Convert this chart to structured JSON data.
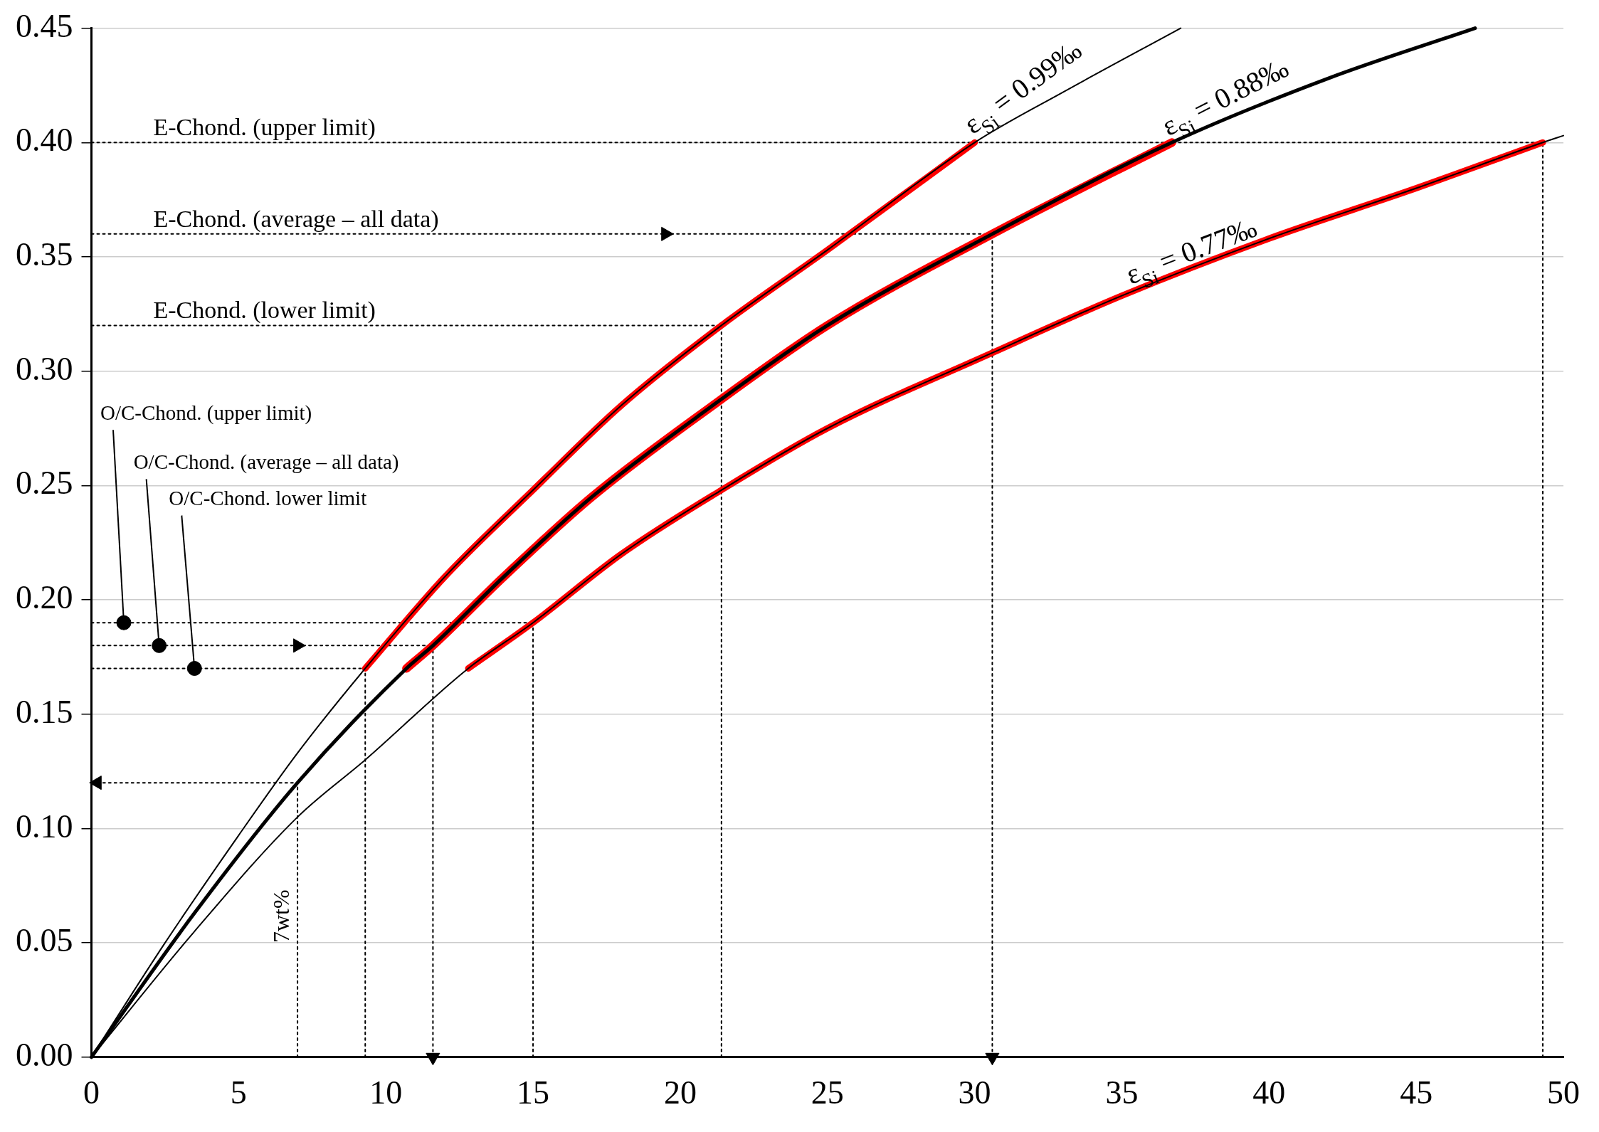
{
  "chart_data": {
    "type": "line",
    "xlim": [
      0,
      50
    ],
    "ylim": [
      0,
      0.45
    ],
    "xticks": [
      0,
      5,
      10,
      15,
      20,
      25,
      30,
      35,
      40,
      45,
      50
    ],
    "yticks": [
      {
        "value": 0,
        "label": "0.00"
      },
      {
        "value": 0.05,
        "label": "0.05"
      },
      {
        "value": 0.1,
        "label": "0.10"
      },
      {
        "value": 0.15,
        "label": "0.15"
      },
      {
        "value": 0.2,
        "label": "0.20"
      },
      {
        "value": 0.25,
        "label": "0.25"
      },
      {
        "value": 0.3,
        "label": "0.30"
      },
      {
        "value": 0.35,
        "label": "0.35"
      },
      {
        "value": 0.4,
        "label": "0.40"
      },
      {
        "value": 0.45,
        "label": "0.45"
      }
    ],
    "grid": "y",
    "legend": false,
    "marker": "none",
    "line_style": "solid",
    "series": [
      {
        "name": "ε$_{Si}$ = 0.99‰",
        "color": "#000000",
        "x": [
          0,
          2.5,
          5,
          7,
          9.3,
          12,
          15,
          18,
          21.4,
          25,
          30,
          33,
          37
        ],
        "values": [
          0,
          0.05,
          0.097,
          0.133,
          0.17,
          0.21,
          0.248,
          0.285,
          0.32,
          0.353,
          0.4,
          0.422,
          0.45
        ]
      },
      {
        "name": "ε$_{Si}$ = 0.88‰",
        "color": "#000000",
        "x": [
          0,
          3.5,
          7,
          10.7,
          11.6,
          14,
          17,
          21,
          25,
          30.6,
          36.7,
          42,
          47
        ],
        "values": [
          0,
          0.063,
          0.12,
          0.17,
          0.18,
          0.21,
          0.245,
          0.284,
          0.32,
          0.36,
          0.4,
          0.428,
          0.45
        ]
      },
      {
        "name": "ε$_{Si}$ = 0.77‰",
        "color": "#000000",
        "x": [
          0,
          3.5,
          7,
          9.3,
          12.8,
          15,
          18,
          21.4,
          25,
          30.6,
          35,
          40,
          45,
          49.3,
          50
        ],
        "values": [
          0,
          0.055,
          0.105,
          0.13,
          0.17,
          0.19,
          0.22,
          0.248,
          0.275,
          0.308,
          0.333,
          0.358,
          0.38,
          0.4,
          0.403
        ]
      },
      {
        "color": "#ff0000",
        "x": [
          9.3,
          12,
          15,
          18,
          21.4,
          25,
          30
        ],
        "values": [
          0.17,
          0.21,
          0.248,
          0.285,
          0.32,
          0.353,
          0.4
        ]
      },
      {
        "color": "#ff0000",
        "x": [
          10.7,
          11.6,
          14,
          17,
          21,
          25,
          30.6,
          36.7
        ],
        "values": [
          0.17,
          0.18,
          0.21,
          0.245,
          0.284,
          0.32,
          0.36,
          0.4
        ]
      },
      {
        "color": "#ff0000",
        "x": [
          12.8,
          15,
          18,
          21.4,
          25,
          30.6,
          35,
          40,
          45,
          49.3
        ],
        "values": [
          0.17,
          0.19,
          0.22,
          0.248,
          0.275,
          0.308,
          0.333,
          0.358,
          0.38,
          0.4
        ]
      },
      {
        "color": "#000000",
        "line_style": "dotted",
        "x": [
          0,
          49.3
        ],
        "values": [
          0.4,
          0.4
        ]
      },
      {
        "color": "#000000",
        "line_style": "dotted",
        "marker": "triangle",
        "x": [
          0,
          19.5
        ],
        "values": [
          0.36,
          0.36
        ]
      },
      {
        "color": "#000000",
        "line_style": "dotted",
        "x": [
          19.5,
          30.6
        ],
        "values": [
          0.36,
          0.36
        ]
      },
      {
        "color": "#000000",
        "line_style": "dotted",
        "x": [
          0,
          21.4
        ],
        "values": [
          0.32,
          0.32
        ]
      },
      {
        "color": "#000000",
        "line_style": "dotted",
        "x": [
          0,
          15
        ],
        "values": [
          0.19,
          0.19
        ]
      },
      {
        "color": "#000000",
        "line_style": "dotted",
        "marker": "triangle",
        "x": [
          0,
          7
        ],
        "values": [
          0.18,
          0.18
        ]
      },
      {
        "color": "#000000",
        "line_style": "dotted",
        "x": [
          7,
          11.6
        ],
        "values": [
          0.18,
          0.18
        ]
      },
      {
        "color": "#000000",
        "line_style": "dotted",
        "x": [
          0,
          9.3
        ],
        "values": [
          0.17,
          0.17
        ]
      },
      {
        "color": "#000000",
        "line_style": "dotted",
        "marker": "triangle",
        "x": [
          0.2,
          7
        ],
        "values": [
          0.12,
          0.12
        ]
      },
      {
        "color": "#000000",
        "line_style": "dotted",
        "x": [
          7,
          7
        ],
        "values": [
          0,
          0.12
        ]
      },
      {
        "color": "#000000",
        "line_style": "dotted",
        "x": [
          9.3,
          9.3
        ],
        "values": [
          0,
          0.17
        ]
      },
      {
        "color": "#000000",
        "line_style": "dotted",
        "marker": "triangle",
        "x": [
          11.6,
          11.6
        ],
        "values": [
          0,
          0.18
        ]
      },
      {
        "color": "#000000",
        "line_style": "dotted",
        "x": [
          15,
          15
        ],
        "values": [
          0,
          0.19
        ]
      },
      {
        "color": "#000000",
        "line_style": "dotted",
        "x": [
          21.4,
          21.4
        ],
        "values": [
          0,
          0.32
        ]
      },
      {
        "color": "#000000",
        "line_style": "dotted",
        "marker": "triangle",
        "x": [
          30.6,
          30.6
        ],
        "values": [
          0,
          0.36
        ]
      },
      {
        "color": "#000000",
        "line_style": "dotted",
        "x": [
          49.3,
          49.3
        ],
        "values": [
          0,
          0.4
        ]
      },
      {
        "type": "scatter",
        "color": "#000000",
        "marker": "circle",
        "x": [
          1.1,
          2.3,
          3.5
        ],
        "values": [
          0.19,
          0.18,
          0.17
        ]
      }
    ],
    "annotations": [
      {
        "text": "E-Chond. (upper limit)",
        "x": 2.1,
        "y": 0.4
      },
      {
        "text": "E-Chond. (average – all data)",
        "x": 2.1,
        "y": 0.36
      },
      {
        "text": "E-Chond. (lower limit)",
        "x": 2.1,
        "y": 0.32
      },
      {
        "text": "O/C-Chond. (upper limit)",
        "x": 1.1,
        "y": 0.19
      },
      {
        "text": "O/C-Chond. (average – all data)",
        "x": 2.3,
        "y": 0.18
      },
      {
        "text": "O/C-Chond. lower limit",
        "x": 3.5,
        "y": 0.17
      },
      {
        "text": "7wt%",
        "x": 7,
        "y": 0.05
      }
    ]
  }
}
